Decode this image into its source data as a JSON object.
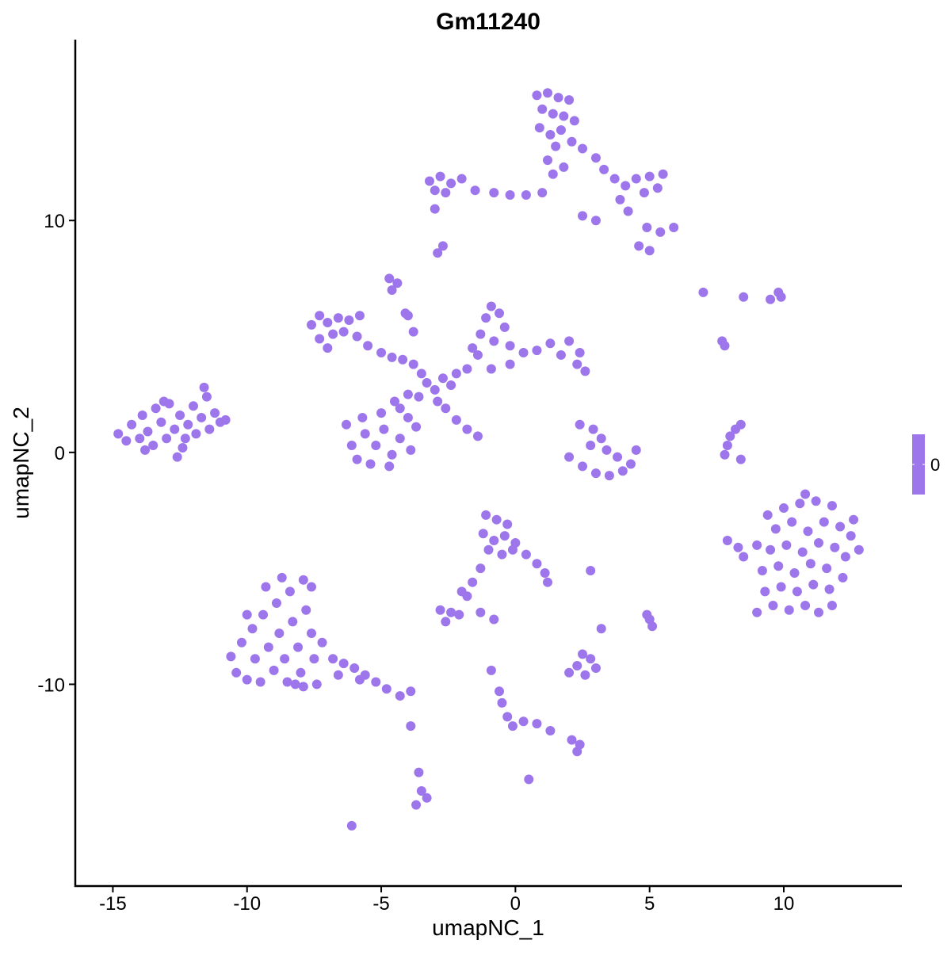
{
  "chart_data": {
    "type": "scatter",
    "title": "Gm11240",
    "xlabel": "umapNC_1",
    "ylabel": "umapNC_2",
    "xlim": [
      -16.4,
      14.4
    ],
    "ylim": [
      -18.7,
      17.8
    ],
    "x_ticks": [
      -15,
      -10,
      -5,
      0,
      5,
      10
    ],
    "x_tick_labels": [
      "-15",
      "-10",
      "-5",
      "0",
      "5",
      "10"
    ],
    "y_ticks": [
      -10,
      0,
      10
    ],
    "y_tick_labels": [
      "-10",
      "0",
      "10"
    ],
    "grid": false,
    "point_color": "#9E76EB",
    "legend": {
      "placement": "right",
      "type": "colorbar",
      "labels": [
        "0"
      ],
      "color": "#9E76EB"
    },
    "points": [
      [
        -14.8,
        0.8
      ],
      [
        -14.5,
        0.5
      ],
      [
        -14.3,
        1.2
      ],
      [
        -14.0,
        0.6
      ],
      [
        -13.9,
        1.6
      ],
      [
        -13.7,
        0.9
      ],
      [
        -13.5,
        0.3
      ],
      [
        -13.4,
        1.9
      ],
      [
        -13.2,
        1.3
      ],
      [
        -13.0,
        0.6
      ],
      [
        -12.9,
        2.1
      ],
      [
        -12.7,
        1.0
      ],
      [
        -12.5,
        1.6
      ],
      [
        -12.4,
        0.2
      ],
      [
        -12.2,
        1.2
      ],
      [
        -12.0,
        2.0
      ],
      [
        -11.9,
        0.8
      ],
      [
        -11.7,
        1.5
      ],
      [
        -11.5,
        2.4
      ],
      [
        -11.4,
        1.0
      ],
      [
        -11.2,
        1.7
      ],
      [
        -11.0,
        1.3
      ],
      [
        -10.8,
        1.4
      ],
      [
        -11.6,
        2.8
      ],
      [
        -12.6,
        -0.2
      ],
      [
        -13.8,
        0.1
      ],
      [
        -13.1,
        2.2
      ],
      [
        -12.3,
        0.6
      ],
      [
        0.8,
        15.4
      ],
      [
        1.2,
        15.5
      ],
      [
        1.6,
        15.3
      ],
      [
        2.0,
        15.2
      ],
      [
        1.0,
        14.8
      ],
      [
        1.4,
        14.6
      ],
      [
        1.8,
        14.5
      ],
      [
        2.2,
        14.3
      ],
      [
        0.9,
        14.0
      ],
      [
        1.3,
        13.7
      ],
      [
        1.7,
        13.9
      ],
      [
        2.1,
        13.4
      ],
      [
        2.5,
        13.1
      ],
      [
        1.5,
        13.2
      ],
      [
        1.2,
        12.6
      ],
      [
        1.4,
        12.0
      ],
      [
        1.8,
        12.3
      ],
      [
        3.0,
        12.7
      ],
      [
        3.3,
        12.2
      ],
      [
        3.7,
        11.8
      ],
      [
        4.1,
        11.5
      ],
      [
        4.5,
        11.8
      ],
      [
        5.0,
        11.9
      ],
      [
        5.5,
        12.0
      ],
      [
        4.8,
        11.2
      ],
      [
        5.3,
        11.4
      ],
      [
        3.9,
        10.9
      ],
      [
        4.2,
        10.4
      ],
      [
        4.9,
        9.7
      ],
      [
        5.4,
        9.5
      ],
      [
        5.9,
        9.7
      ],
      [
        4.6,
        8.9
      ],
      [
        5.0,
        8.7
      ],
      [
        2.5,
        10.2
      ],
      [
        3.0,
        10.0
      ],
      [
        -3.2,
        11.7
      ],
      [
        -2.8,
        11.9
      ],
      [
        -2.4,
        11.6
      ],
      [
        -2.0,
        11.8
      ],
      [
        -2.6,
        11.2
      ],
      [
        -3.0,
        11.3
      ],
      [
        -1.5,
        11.3
      ],
      [
        -0.8,
        11.2
      ],
      [
        -0.2,
        11.1
      ],
      [
        0.4,
        11.1
      ],
      [
        1.0,
        11.2
      ],
      [
        -3.0,
        10.5
      ],
      [
        -2.9,
        8.6
      ],
      [
        -2.7,
        8.9
      ],
      [
        -7.6,
        5.5
      ],
      [
        -7.3,
        5.9
      ],
      [
        -7.0,
        5.6
      ],
      [
        -6.6,
        5.8
      ],
      [
        -6.2,
        5.7
      ],
      [
        -5.8,
        5.9
      ],
      [
        -7.3,
        4.9
      ],
      [
        -7.0,
        4.5
      ],
      [
        -6.8,
        5.1
      ],
      [
        -6.4,
        5.2
      ],
      [
        -5.9,
        5.0
      ],
      [
        -5.5,
        4.6
      ],
      [
        -5.0,
        4.3
      ],
      [
        -4.6,
        4.1
      ],
      [
        -4.2,
        4.0
      ],
      [
        -3.8,
        3.8
      ],
      [
        -3.5,
        3.4
      ],
      [
        -4.7,
        7.5
      ],
      [
        -4.4,
        7.3
      ],
      [
        -4.6,
        7.0
      ],
      [
        -4.1,
        6.0
      ],
      [
        -3.8,
        5.2
      ],
      [
        -3.3,
        3.0
      ],
      [
        -3.0,
        2.7
      ],
      [
        -2.7,
        3.2
      ],
      [
        -2.4,
        2.9
      ],
      [
        -2.9,
        2.2
      ],
      [
        -2.2,
        3.4
      ],
      [
        -3.6,
        2.4
      ],
      [
        -1.8,
        3.6
      ],
      [
        -1.4,
        4.2
      ],
      [
        -1.3,
        5.1
      ],
      [
        -1.1,
        5.8
      ],
      [
        -0.9,
        6.3
      ],
      [
        -0.6,
        6.0
      ],
      [
        -0.4,
        5.4
      ],
      [
        -0.8,
        4.8
      ],
      [
        -1.6,
        4.5
      ],
      [
        -0.2,
        4.6
      ],
      [
        0.3,
        4.3
      ],
      [
        0.8,
        4.4
      ],
      [
        1.3,
        4.7
      ],
      [
        1.7,
        4.2
      ],
      [
        2.0,
        4.8
      ],
      [
        2.3,
        3.8
      ],
      [
        2.6,
        3.5
      ],
      [
        2.4,
        4.3
      ],
      [
        -0.2,
        3.8
      ],
      [
        -0.9,
        3.6
      ],
      [
        -6.3,
        1.2
      ],
      [
        -6.1,
        0.3
      ],
      [
        -5.9,
        -0.3
      ],
      [
        -5.6,
        0.8
      ],
      [
        -5.4,
        -0.5
      ],
      [
        -5.2,
        0.3
      ],
      [
        -4.9,
        1.0
      ],
      [
        -4.6,
        -0.1
      ],
      [
        -4.3,
        0.6
      ],
      [
        -4.0,
        1.5
      ],
      [
        -3.9,
        0.1
      ],
      [
        -4.3,
        1.9
      ],
      [
        -4.0,
        2.5
      ],
      [
        -3.7,
        1.1
      ],
      [
        -5.7,
        1.5
      ],
      [
        -4.7,
        -0.6
      ],
      [
        -5.0,
        1.7
      ],
      [
        -4.5,
        2.2
      ],
      [
        -2.6,
        1.9
      ],
      [
        -2.2,
        1.4
      ],
      [
        -1.8,
        1.0
      ],
      [
        -1.4,
        0.7
      ],
      [
        -4.0,
        5.9
      ],
      [
        2.4,
        1.2
      ],
      [
        2.9,
        1.0
      ],
      [
        3.2,
        0.6
      ],
      [
        2.8,
        0.3
      ],
      [
        3.4,
        0.1
      ],
      [
        2.0,
        -0.2
      ],
      [
        2.5,
        -0.6
      ],
      [
        3.0,
        -0.9
      ],
      [
        3.5,
        -1.0
      ],
      [
        4.0,
        -0.8
      ],
      [
        4.3,
        -0.5
      ],
      [
        4.5,
        0.1
      ],
      [
        3.8,
        -0.2
      ],
      [
        7.8,
        -0.1
      ],
      [
        7.9,
        0.3
      ],
      [
        8.0,
        0.7
      ],
      [
        8.2,
        1.0
      ],
      [
        8.4,
        1.2
      ],
      [
        8.4,
        -0.3
      ],
      [
        7.0,
        6.9
      ],
      [
        7.7,
        4.8
      ],
      [
        7.8,
        4.6
      ],
      [
        8.5,
        6.7
      ],
      [
        9.5,
        6.6
      ],
      [
        9.8,
        6.9
      ],
      [
        9.9,
        6.7
      ],
      [
        9.0,
        -6.9
      ],
      [
        9.6,
        -6.6
      ],
      [
        10.2,
        -6.8
      ],
      [
        10.8,
        -6.6
      ],
      [
        11.3,
        -6.9
      ],
      [
        11.8,
        -6.6
      ],
      [
        9.3,
        -6.0
      ],
      [
        9.9,
        -5.8
      ],
      [
        10.5,
        -6.0
      ],
      [
        11.1,
        -5.7
      ],
      [
        11.7,
        -5.9
      ],
      [
        12.2,
        -5.4
      ],
      [
        9.2,
        -5.1
      ],
      [
        9.8,
        -4.9
      ],
      [
        10.4,
        -5.2
      ],
      [
        11.0,
        -4.8
      ],
      [
        11.6,
        -5.0
      ],
      [
        12.3,
        -4.5
      ],
      [
        9.5,
        -4.2
      ],
      [
        10.1,
        -4.0
      ],
      [
        10.7,
        -4.3
      ],
      [
        11.3,
        -3.9
      ],
      [
        11.9,
        -4.1
      ],
      [
        12.5,
        -3.6
      ],
      [
        9.7,
        -3.3
      ],
      [
        10.3,
        -3.0
      ],
      [
        10.9,
        -3.4
      ],
      [
        11.5,
        -3.0
      ],
      [
        12.1,
        -3.2
      ],
      [
        12.6,
        -2.9
      ],
      [
        10.0,
        -2.4
      ],
      [
        10.6,
        -2.2
      ],
      [
        11.2,
        -2.1
      ],
      [
        11.8,
        -2.3
      ],
      [
        10.8,
        -1.8
      ],
      [
        9.0,
        -4.0
      ],
      [
        8.3,
        -4.1
      ],
      [
        7.9,
        -3.8
      ],
      [
        8.5,
        -4.5
      ],
      [
        12.8,
        -4.2
      ],
      [
        9.4,
        -2.7
      ],
      [
        -10.6,
        -8.8
      ],
      [
        -10.4,
        -9.5
      ],
      [
        -10.2,
        -8.2
      ],
      [
        -10.0,
        -9.8
      ],
      [
        -9.8,
        -7.6
      ],
      [
        -9.7,
        -8.9
      ],
      [
        -9.5,
        -9.9
      ],
      [
        -9.4,
        -7.0
      ],
      [
        -9.2,
        -8.4
      ],
      [
        -9.0,
        -9.4
      ],
      [
        -8.9,
        -6.5
      ],
      [
        -8.8,
        -7.8
      ],
      [
        -8.6,
        -8.9
      ],
      [
        -8.5,
        -9.9
      ],
      [
        -8.4,
        -6.0
      ],
      [
        -8.3,
        -7.3
      ],
      [
        -8.1,
        -8.4
      ],
      [
        -8.0,
        -9.5
      ],
      [
        -7.9,
        -5.5
      ],
      [
        -7.8,
        -6.8
      ],
      [
        -7.6,
        -7.8
      ],
      [
        -7.5,
        -8.9
      ],
      [
        -7.4,
        -10.0
      ],
      [
        -7.9,
        -10.1
      ],
      [
        -8.7,
        -5.4
      ],
      [
        -7.6,
        -5.8
      ],
      [
        -9.3,
        -5.8
      ],
      [
        -10.0,
        -7.0
      ],
      [
        -7.2,
        -8.2
      ],
      [
        -6.8,
        -8.9
      ],
      [
        -6.4,
        -9.1
      ],
      [
        -6.0,
        -9.3
      ],
      [
        -5.6,
        -9.6
      ],
      [
        -5.2,
        -9.9
      ],
      [
        -4.8,
        -10.2
      ],
      [
        -4.3,
        -10.5
      ],
      [
        -3.9,
        -10.3
      ],
      [
        -6.6,
        -9.6
      ],
      [
        -5.8,
        -9.8
      ],
      [
        -8.2,
        -10.0
      ],
      [
        -1.1,
        -2.7
      ],
      [
        -0.7,
        -2.9
      ],
      [
        -0.3,
        -3.1
      ],
      [
        -1.2,
        -3.5
      ],
      [
        -0.8,
        -3.8
      ],
      [
        -0.4,
        -3.6
      ],
      [
        0.0,
        -3.9
      ],
      [
        -1.0,
        -4.2
      ],
      [
        -0.5,
        -4.4
      ],
      [
        -0.1,
        -4.2
      ],
      [
        0.4,
        -4.4
      ],
      [
        0.8,
        -4.8
      ],
      [
        1.1,
        -5.2
      ],
      [
        1.2,
        -5.6
      ],
      [
        -1.3,
        -5.0
      ],
      [
        -1.6,
        -5.6
      ],
      [
        -1.8,
        -6.2
      ],
      [
        -2.0,
        -6.0
      ],
      [
        -2.8,
        -6.8
      ],
      [
        -2.4,
        -6.9
      ],
      [
        -2.1,
        -7.0
      ],
      [
        -2.6,
        -7.3
      ],
      [
        -1.3,
        -6.9
      ],
      [
        -0.8,
        -7.2
      ],
      [
        2.8,
        -5.1
      ],
      [
        2.0,
        -9.5
      ],
      [
        2.3,
        -9.2
      ],
      [
        2.6,
        -9.6
      ],
      [
        2.8,
        -8.9
      ],
      [
        2.5,
        -8.7
      ],
      [
        3.0,
        -9.3
      ],
      [
        3.2,
        -7.6
      ],
      [
        5.0,
        -7.2
      ],
      [
        5.1,
        -7.5
      ],
      [
        4.9,
        -7.0
      ],
      [
        -0.9,
        -9.4
      ],
      [
        -0.6,
        -10.3
      ],
      [
        -0.5,
        -10.8
      ],
      [
        -0.3,
        -11.4
      ],
      [
        -0.1,
        -11.8
      ],
      [
        0.3,
        -11.6
      ],
      [
        0.8,
        -11.7
      ],
      [
        1.3,
        -12.0
      ],
      [
        2.1,
        -12.4
      ],
      [
        2.4,
        -12.6
      ],
      [
        2.3,
        -12.9
      ],
      [
        0.5,
        -14.1
      ],
      [
        -3.6,
        -13.8
      ],
      [
        -3.5,
        -14.6
      ],
      [
        -3.7,
        -15.2
      ],
      [
        -3.3,
        -14.9
      ],
      [
        -3.9,
        -11.8
      ],
      [
        -6.1,
        -16.1
      ]
    ]
  }
}
